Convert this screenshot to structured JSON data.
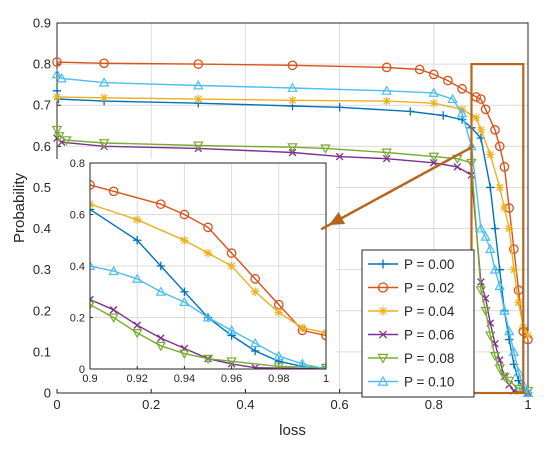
{
  "chart_data": {
    "type": "line",
    "xlabel": "loss",
    "ylabel": "Probability",
    "xlim": [
      0,
      1
    ],
    "ylim": [
      0,
      0.9
    ],
    "x_ticks": [
      "0",
      "0.2",
      "0.4",
      "0.6",
      "0.8",
      "1"
    ],
    "y_ticks": [
      "0",
      "0.1",
      "0.2",
      "0.3",
      "0.4",
      "0.5",
      "0.6",
      "0.7",
      "0.8",
      "0.9"
    ],
    "grid": true,
    "legend_position": "bottom-right",
    "colors": [
      "#0072BD",
      "#D95319",
      "#EDB120",
      "#7E2F8E",
      "#77AC30",
      "#4DBEEE"
    ],
    "markers": [
      "plus",
      "circle",
      "star",
      "x",
      "triangle-down",
      "triangle-up"
    ],
    "series": [
      {
        "name": "P = 0.00",
        "points": [
          [
            0,
            0.735
          ],
          [
            0.003,
            0.715
          ],
          [
            0.1,
            0.71
          ],
          [
            0.3,
            0.705
          ],
          [
            0.5,
            0.698
          ],
          [
            0.6,
            0.695
          ],
          [
            0.75,
            0.685
          ],
          [
            0.82,
            0.675
          ],
          [
            0.86,
            0.665
          ],
          [
            0.88,
            0.645
          ],
          [
            0.9,
            0.62
          ],
          [
            0.92,
            0.5
          ],
          [
            0.93,
            0.4
          ],
          [
            0.94,
            0.3
          ],
          [
            0.95,
            0.2
          ],
          [
            0.96,
            0.13
          ],
          [
            0.97,
            0.07
          ],
          [
            0.98,
            0.03
          ],
          [
            0.99,
            0.01
          ],
          [
            1.0,
            0.0
          ]
        ]
      },
      {
        "name": "P = 0.02",
        "points": [
          [
            0,
            0.805
          ],
          [
            0.1,
            0.802
          ],
          [
            0.3,
            0.8
          ],
          [
            0.5,
            0.797
          ],
          [
            0.7,
            0.792
          ],
          [
            0.77,
            0.787
          ],
          [
            0.8,
            0.775
          ],
          [
            0.83,
            0.76
          ],
          [
            0.86,
            0.74
          ],
          [
            0.89,
            0.72
          ],
          [
            0.9,
            0.715
          ],
          [
            0.91,
            0.69
          ],
          [
            0.93,
            0.64
          ],
          [
            0.94,
            0.6
          ],
          [
            0.95,
            0.55
          ],
          [
            0.96,
            0.45
          ],
          [
            0.97,
            0.35
          ],
          [
            0.98,
            0.25
          ],
          [
            0.99,
            0.15
          ],
          [
            1.0,
            0.13
          ]
        ]
      },
      {
        "name": "P = 0.04",
        "points": [
          [
            0,
            0.72
          ],
          [
            0.1,
            0.718
          ],
          [
            0.3,
            0.715
          ],
          [
            0.5,
            0.712
          ],
          [
            0.7,
            0.71
          ],
          [
            0.8,
            0.705
          ],
          [
            0.86,
            0.69
          ],
          [
            0.89,
            0.67
          ],
          [
            0.9,
            0.64
          ],
          [
            0.92,
            0.58
          ],
          [
            0.94,
            0.5
          ],
          [
            0.95,
            0.45
          ],
          [
            0.96,
            0.4
          ],
          [
            0.97,
            0.3
          ],
          [
            0.98,
            0.22
          ],
          [
            0.99,
            0.16
          ],
          [
            1.0,
            0.14
          ]
        ]
      },
      {
        "name": "P = 0.06",
        "points": [
          [
            0,
            0.62
          ],
          [
            0.01,
            0.61
          ],
          [
            0.1,
            0.6
          ],
          [
            0.3,
            0.595
          ],
          [
            0.5,
            0.585
          ],
          [
            0.6,
            0.575
          ],
          [
            0.7,
            0.57
          ],
          [
            0.8,
            0.56
          ],
          [
            0.85,
            0.55
          ],
          [
            0.88,
            0.53
          ],
          [
            0.9,
            0.27
          ],
          [
            0.91,
            0.23
          ],
          [
            0.92,
            0.17
          ],
          [
            0.93,
            0.12
          ],
          [
            0.94,
            0.08
          ],
          [
            0.95,
            0.04
          ],
          [
            0.96,
            0.02
          ],
          [
            0.97,
            0.005
          ],
          [
            1.0,
            0.0
          ]
        ]
      },
      {
        "name": "P = 0.08",
        "points": [
          [
            0,
            0.64
          ],
          [
            0.005,
            0.625
          ],
          [
            0.02,
            0.615
          ],
          [
            0.1,
            0.608
          ],
          [
            0.3,
            0.602
          ],
          [
            0.5,
            0.598
          ],
          [
            0.57,
            0.595
          ],
          [
            0.7,
            0.585
          ],
          [
            0.8,
            0.575
          ],
          [
            0.85,
            0.57
          ],
          [
            0.88,
            0.56
          ],
          [
            0.9,
            0.25
          ],
          [
            0.91,
            0.2
          ],
          [
            0.92,
            0.14
          ],
          [
            0.93,
            0.09
          ],
          [
            0.94,
            0.06
          ],
          [
            0.95,
            0.04
          ],
          [
            0.96,
            0.03
          ],
          [
            0.98,
            0.01
          ],
          [
            1.0,
            0.005
          ]
        ]
      },
      {
        "name": "P = 0.10",
        "points": [
          [
            0,
            0.775
          ],
          [
            0.01,
            0.765
          ],
          [
            0.1,
            0.755
          ],
          [
            0.3,
            0.748
          ],
          [
            0.5,
            0.742
          ],
          [
            0.7,
            0.735
          ],
          [
            0.8,
            0.73
          ],
          [
            0.84,
            0.715
          ],
          [
            0.86,
            0.68
          ],
          [
            0.88,
            0.6
          ],
          [
            0.9,
            0.4
          ],
          [
            0.91,
            0.38
          ],
          [
            0.92,
            0.35
          ],
          [
            0.93,
            0.3
          ],
          [
            0.94,
            0.26
          ],
          [
            0.95,
            0.2
          ],
          [
            0.96,
            0.15
          ],
          [
            0.97,
            0.1
          ],
          [
            0.98,
            0.05
          ],
          [
            0.99,
            0.02
          ],
          [
            1.0,
            0.0
          ]
        ]
      }
    ],
    "inset": {
      "xlim": [
        0.9,
        1
      ],
      "ylim": [
        0,
        0.8
      ],
      "x_ticks": [
        "0.9",
        "0.92",
        "0.94",
        "0.96",
        "0.98",
        "1"
      ],
      "y_ticks": [
        "0",
        "0.2",
        "0.4",
        "0.6",
        "0.8"
      ],
      "highlight_x": [
        0.88,
        0.99
      ],
      "highlight_y": [
        0.0,
        0.8
      ],
      "arrow_color": "#B5651D",
      "highlight_color": "#B5651D"
    }
  }
}
